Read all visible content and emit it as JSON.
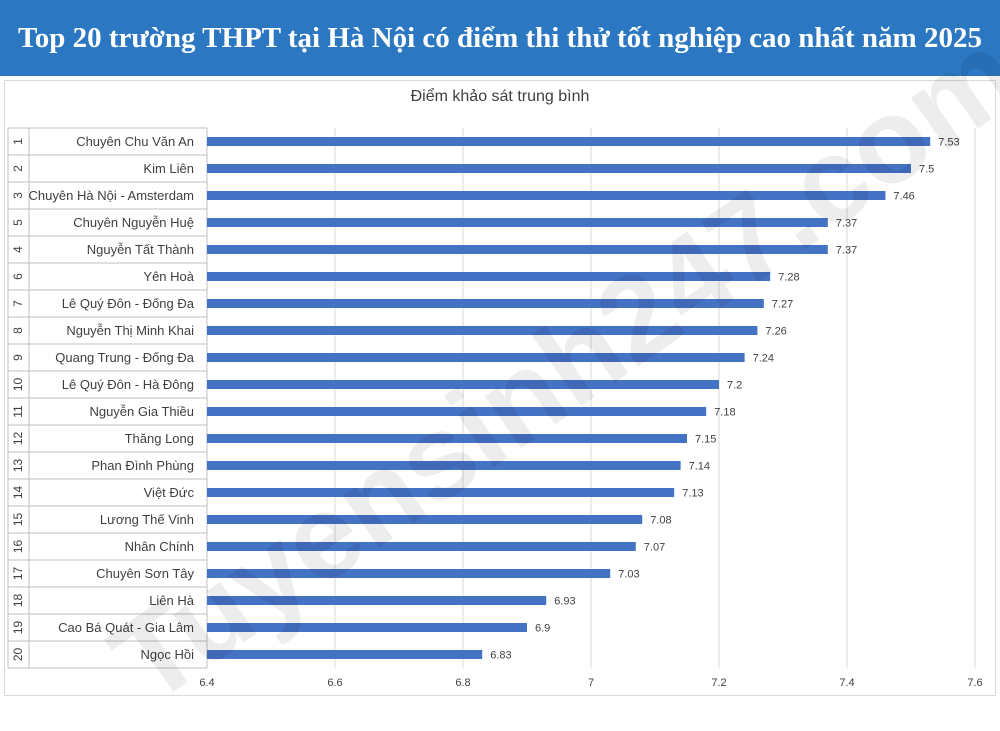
{
  "header": {
    "title": "Top 20 trường THPT tại Hà Nội có điểm thi thử tốt nghiệp cao nhất năm 2025"
  },
  "watermark": "Tuyensinh247.com",
  "colors": {
    "header_bg": "#2b77c2",
    "bar": "#4472c4",
    "grid": "#d9d9d9"
  },
  "chart_data": {
    "type": "bar",
    "orientation": "horizontal",
    "title": "Điểm khảo sát trung bình",
    "xlim": [
      6.4,
      7.6
    ],
    "xticks": [
      6.4,
      6.6,
      6.8,
      7,
      7.2,
      7.4,
      7.6
    ],
    "grid": true,
    "ranks": [
      "1",
      "2",
      "3",
      "5",
      "4",
      "6",
      "7",
      "8",
      "9",
      "10",
      "11",
      "12",
      "13",
      "14",
      "15",
      "16",
      "17",
      "18",
      "19",
      "20"
    ],
    "categories": [
      "Chuyên Chu Văn An",
      "Kim Liên",
      "Chuyên Hà Nội - Amsterdam",
      "Chuyên Nguyễn Huệ",
      "Nguyễn Tất Thành",
      "Yên Hoà",
      "Lê Quý Đôn - Đống Đa",
      "Nguyễn Thị Minh Khai",
      "Quang Trung - Đống Đa",
      "Lê Quý Đôn - Hà Đông",
      "Nguyễn Gia Thiều",
      "Thăng Long",
      "Phan Đình Phùng",
      "Việt Đức",
      "Lương Thế Vinh",
      "Nhân Chính",
      "Chuyên Sơn Tây",
      "Liên Hà",
      "Cao Bá Quát - Gia Lâm",
      "Ngọc Hồi"
    ],
    "values": [
      7.53,
      7.5,
      7.46,
      7.37,
      7.37,
      7.28,
      7.27,
      7.26,
      7.24,
      7.2,
      7.18,
      7.15,
      7.14,
      7.13,
      7.08,
      7.07,
      7.03,
      6.93,
      6.9,
      6.83
    ]
  }
}
